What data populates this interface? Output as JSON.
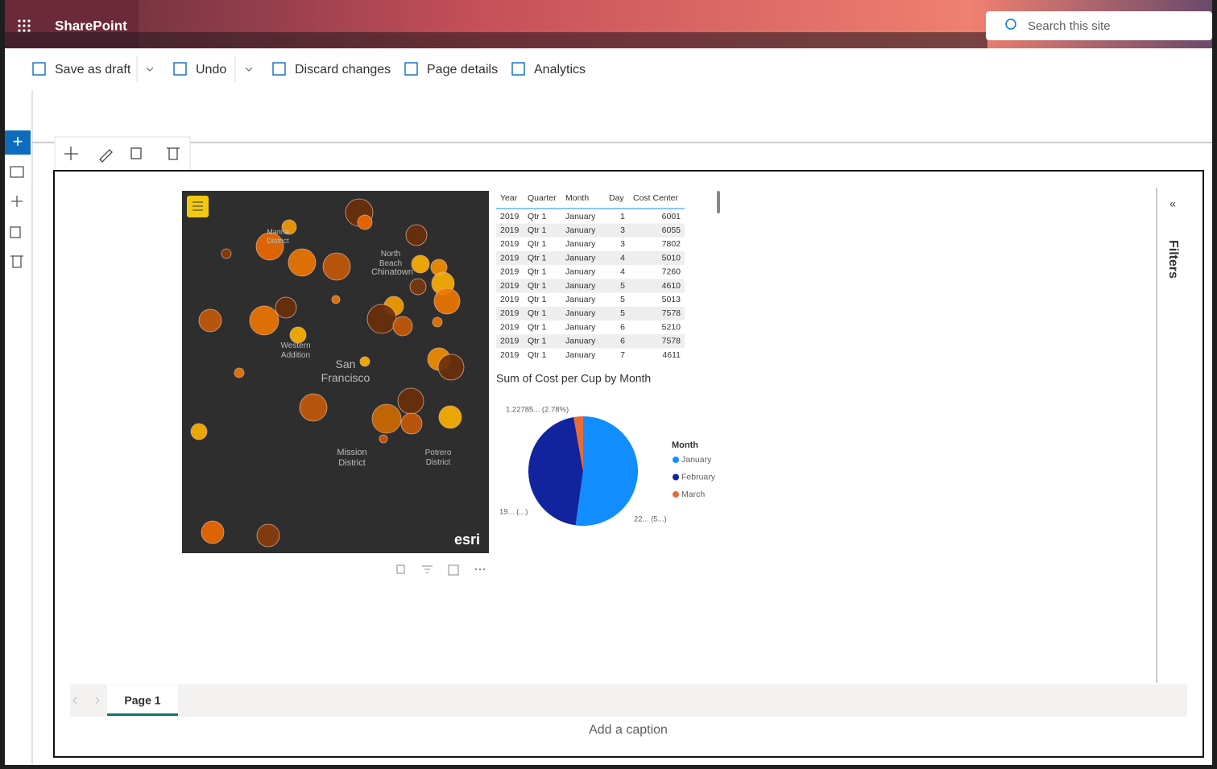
{
  "header": {
    "app": "SharePoint",
    "search": "Search this site"
  },
  "commands": [
    "Save as draft",
    "Undo",
    "Discard changes",
    "Page details",
    "Analytics"
  ],
  "table": {
    "columns": [
      "Year",
      "Quarter",
      "Month",
      "Day",
      "Cost Center"
    ],
    "rows": [
      [
        2019,
        "Qtr 1",
        "January",
        1,
        6001
      ],
      [
        2019,
        "Qtr 1",
        "January",
        3,
        6055
      ],
      [
        2019,
        "Qtr 1",
        "January",
        3,
        7802
      ],
      [
        2019,
        "Qtr 1",
        "January",
        4,
        5010
      ],
      [
        2019,
        "Qtr 1",
        "January",
        4,
        7260
      ],
      [
        2019,
        "Qtr 1",
        "January",
        5,
        4610
      ],
      [
        2019,
        "Qtr 1",
        "January",
        5,
        5013
      ],
      [
        2019,
        "Qtr 1",
        "January",
        5,
        7578
      ],
      [
        2019,
        "Qtr 1",
        "January",
        6,
        5210
      ],
      [
        2019,
        "Qtr 1",
        "January",
        6,
        7578
      ],
      [
        2019,
        "Qtr 1",
        "January",
        7,
        4611
      ]
    ]
  },
  "map": {
    "labels": [
      "Marina District",
      "North Beach",
      "Chinatown",
      "Western Addition",
      "San Francisco",
      "Mission District",
      "Potrero District"
    ],
    "logo": "esri"
  },
  "pie": {
    "title": "Sum of Cost per Cup by Month",
    "legend_title": "Month",
    "categories": [
      "January",
      "February",
      "March"
    ],
    "colors": [
      "#118dff",
      "#12239e",
      "#e66c37"
    ],
    "values": [
      52.2,
      45.02,
      2.78
    ],
    "value_labels": [
      "22... (5...)",
      "19... (...)",
      "1.22785... (2.78%)"
    ]
  },
  "filters": "Filters",
  "tab": "Page 1",
  "caption": "Add a caption"
}
